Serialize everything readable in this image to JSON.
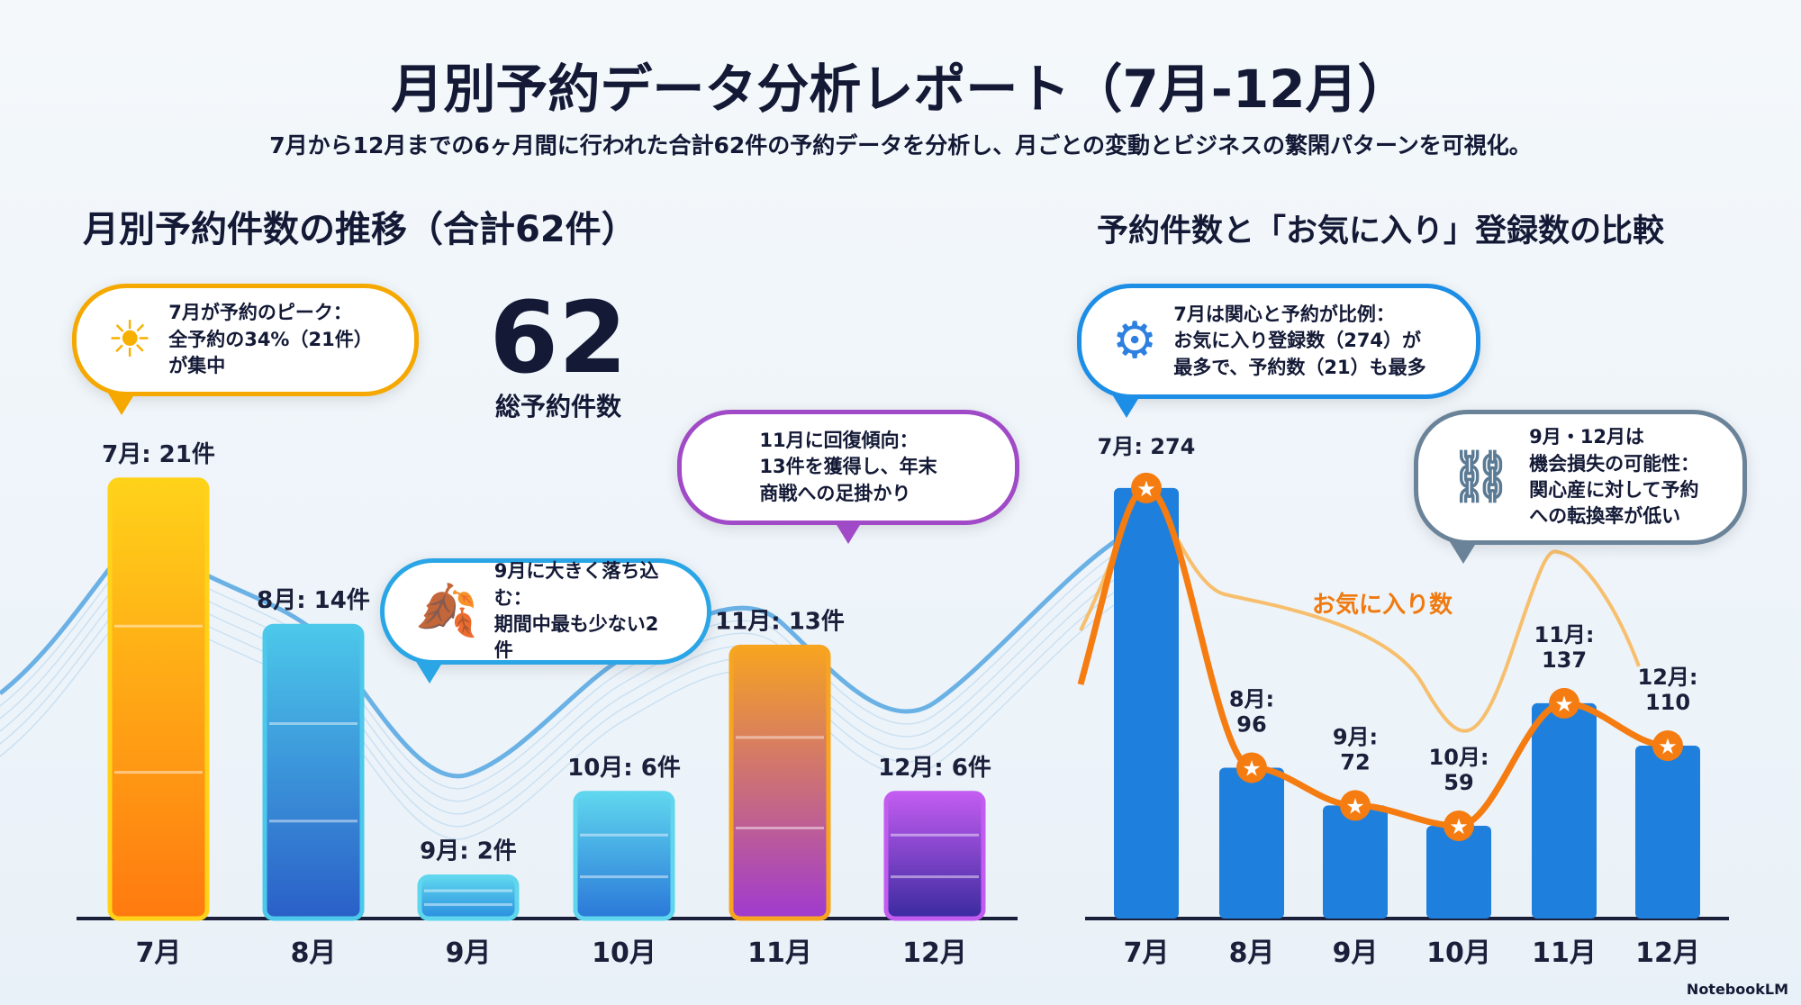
{
  "title": "月別予約データ分析レポート（7月-12月）",
  "subtitle": "7月から12月までの6ヶ月間に行われた合計62件の予約データを分析し、月ごとの変動とビジネスの繁閑パターンを可視化。",
  "total": {
    "value": "62",
    "label": "総予約件数"
  },
  "callouts": {
    "peak": "7月が予約のピーク：\n全予約の34%（21件）\nが集中",
    "drop": "9月に大きく落ち込む：\n期間中最も少ない2件",
    "recover": "11月に回復傾向：\n13件を獲得し、年末\n商戦への足掛かり",
    "prop": "7月は関心と予約が比例：\nお気に入り登録数（274）が\n最多で、予約数（21）も最多",
    "loss": "9月・12月は\n機会損失の可能性：\n関心産に対して予約\nへの転換率が低い"
  },
  "icons": {
    "peak": "sun-icon",
    "drop": "autumn-leaves-icon",
    "prop": "gears-icon",
    "loss": "broken-chain-icon"
  },
  "logo": "NotebookLM",
  "chart_data": [
    {
      "type": "bar",
      "title": "月別予約件数の推移（合計62件）",
      "categories": [
        "7月",
        "8月",
        "9月",
        "10月",
        "11月",
        "12月"
      ],
      "values": [
        21,
        14,
        2,
        6,
        13,
        6
      ],
      "data_labels": [
        "7月: 21件",
        "8月: 14件",
        "9月: 2件",
        "10月: 6件",
        "11月: 13件",
        "12月: 6件"
      ],
      "colors": [
        "#f7a600",
        "#2a8fe0",
        "#34b6e0",
        "#2aa6e0",
        "#f07a10",
        "#9b4ee0"
      ]
    },
    {
      "type": "bar",
      "title": "予約件数と「お気に入り」登録数の比較",
      "categories": [
        "7月",
        "8月",
        "9月",
        "10月",
        "11月",
        "12月"
      ],
      "series": [
        {
          "name": "お気に入り数",
          "values": [
            274,
            96,
            72,
            59,
            137,
            110
          ]
        }
      ],
      "data_labels": [
        "7月: 274",
        "8月:\n96",
        "9月:\n72",
        "10月:\n59",
        "11月:\n137",
        "12月:\n110"
      ],
      "bar_color": "#1f7fdc",
      "line_color": "#f57c10"
    }
  ]
}
